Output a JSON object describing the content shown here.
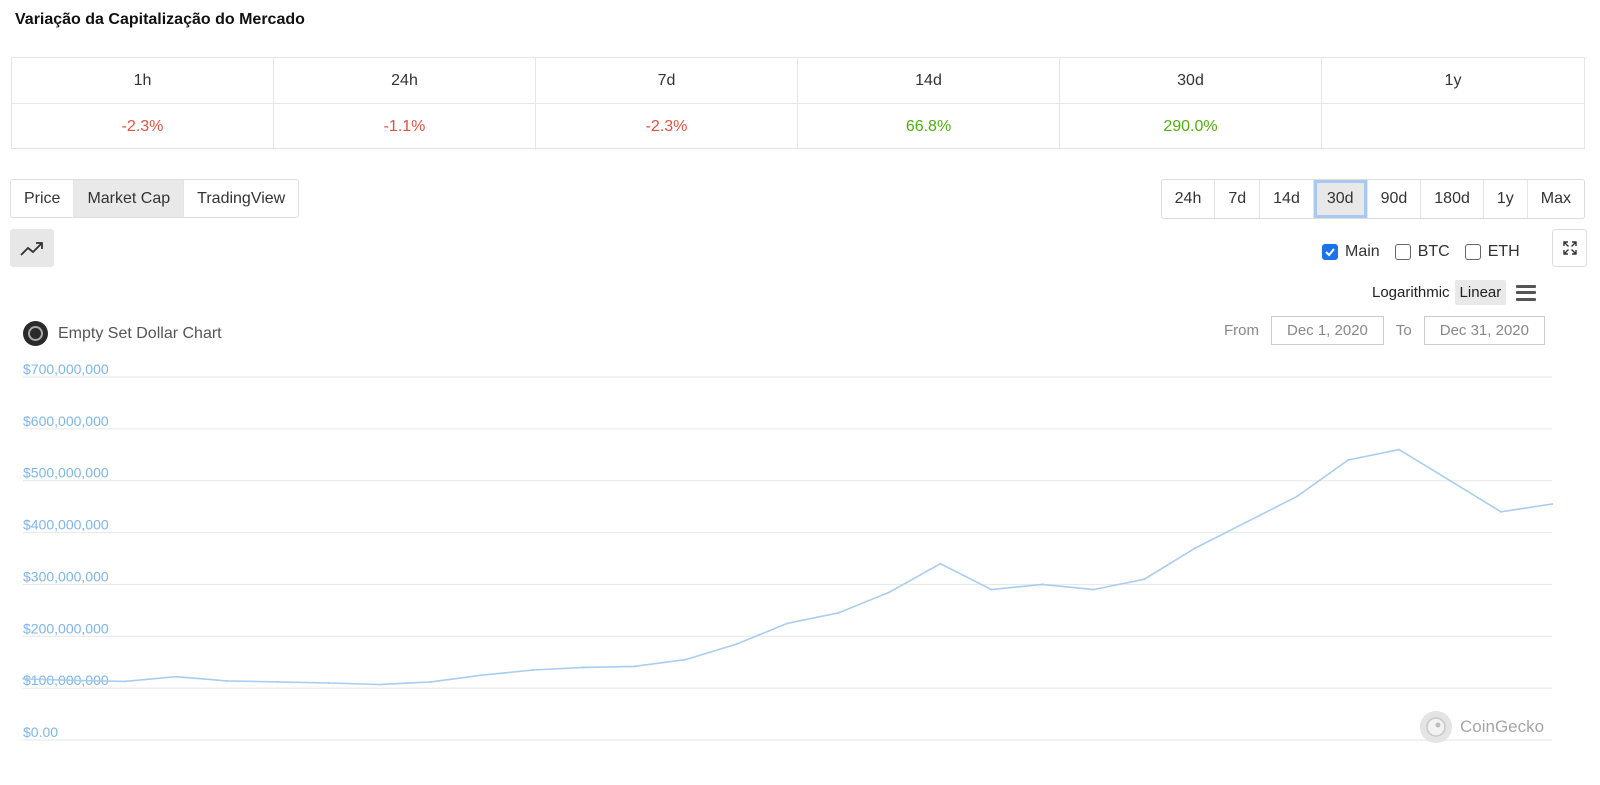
{
  "section_title": "Variação da Capitalização do Mercado",
  "change_table": {
    "headers": [
      "1h",
      "24h",
      "7d",
      "14d",
      "30d",
      "1y"
    ],
    "values": [
      "-2.3%",
      "-1.1%",
      "-2.3%",
      "66.8%",
      "290.0%",
      ""
    ]
  },
  "view_tabs": [
    "Price",
    "Market Cap",
    "TradingView"
  ],
  "view_tab_active": "Market Cap",
  "range_tabs": [
    "24h",
    "7d",
    "14d",
    "30d",
    "90d",
    "180d",
    "1y",
    "Max"
  ],
  "range_tab_active": "30d",
  "series_toggles": [
    {
      "label": "Main",
      "checked": true
    },
    {
      "label": "BTC",
      "checked": false
    },
    {
      "label": "ETH",
      "checked": false
    }
  ],
  "scale": {
    "log_label": "Logarithmic",
    "linear_label": "Linear",
    "active": "Linear"
  },
  "date_range": {
    "from_label": "From",
    "from_value": "Dec 1, 2020",
    "to_label": "To",
    "to_value": "Dec 31, 2020"
  },
  "watermark": "CoinGecko",
  "colors": {
    "line": "#a9cdf0",
    "axis_label": "#7cb5ec",
    "grid": "#e6e6e6",
    "negative": "#e15241",
    "positive": "#4eaf0a"
  },
  "icons": [
    "trend-up-icon",
    "expand-icon",
    "menu-icon",
    "coin-logo-icon",
    "coingecko-logo-icon"
  ],
  "chart_data": {
    "type": "line",
    "title": "Empty Set Dollar Chart",
    "xlabel": "",
    "ylabel": "",
    "xlim": [
      "Dec 1, 2020",
      "Dec 31, 2020"
    ],
    "ylim": [
      0,
      700000000
    ],
    "y_ticks": [
      "$0.00",
      "$100,000,000",
      "$200,000,000",
      "$300,000,000",
      "$400,000,000",
      "$500,000,000",
      "$600,000,000",
      "$700,000,000"
    ],
    "grid": true,
    "series": [
      {
        "x": [
          "Dec 1, 2020",
          "Dec 2, 2020",
          "Dec 3, 2020",
          "Dec 4, 2020",
          "Dec 5, 2020",
          "Dec 6, 2020",
          "Dec 7, 2020",
          "Dec 8, 2020",
          "Dec 9, 2020",
          "Dec 10, 2020",
          "Dec 11, 2020",
          "Dec 12, 2020",
          "Dec 13, 2020",
          "Dec 14, 2020",
          "Dec 15, 2020",
          "Dec 16, 2020",
          "Dec 17, 2020",
          "Dec 18, 2020",
          "Dec 19, 2020",
          "Dec 20, 2020",
          "Dec 21, 2020",
          "Dec 22, 2020",
          "Dec 23, 2020",
          "Dec 24, 2020",
          "Dec 25, 2020",
          "Dec 26, 2020",
          "Dec 27, 2020",
          "Dec 28, 2020",
          "Dec 29, 2020",
          "Dec 30, 2020",
          "Dec 31, 2020"
        ],
        "values": [
          118000000,
          115000000,
          113000000,
          122000000,
          114000000,
          112000000,
          110000000,
          107000000,
          112000000,
          125000000,
          135000000,
          140000000,
          142000000,
          155000000,
          185000000,
          225000000,
          245000000,
          285000000,
          340000000,
          290000000,
          300000000,
          290000000,
          310000000,
          370000000,
          420000000,
          470000000,
          540000000,
          560000000,
          500000000,
          440000000,
          455000000
        ]
      }
    ]
  }
}
